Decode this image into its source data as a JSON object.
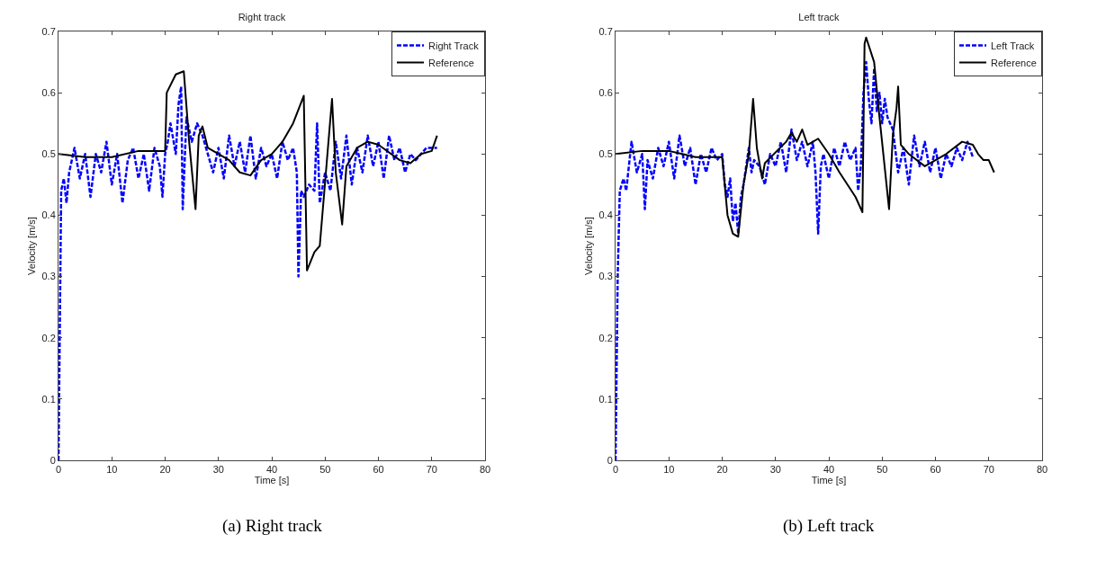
{
  "chart_data": [
    {
      "type": "line",
      "title": "Right track",
      "xlabel": "Time [s]",
      "ylabel": "Velocity [m/s]",
      "xlim": [
        0,
        80
      ],
      "ylim": [
        0,
        0.7
      ],
      "xticks": [
        0,
        10,
        20,
        30,
        40,
        50,
        60,
        70,
        80
      ],
      "yticks": [
        0,
        0.1,
        0.2,
        0.3,
        0.4,
        0.5,
        0.6,
        0.7
      ],
      "grid": false,
      "legend": "top right",
      "annotations": [
        "(a) Right track"
      ],
      "series": [
        {
          "name": "Right Track",
          "color": "#0000ff",
          "line_style": "dashed",
          "x": [
            0,
            0.5,
            1,
            1.5,
            2,
            3,
            4,
            5,
            6,
            7,
            8,
            9,
            10,
            11,
            12,
            13,
            14,
            15,
            16,
            17,
            18,
            19,
            19.5,
            20,
            20.5,
            21,
            22,
            22.5,
            23,
            23.3,
            24,
            25,
            26,
            27,
            29,
            30,
            31,
            32,
            33,
            34,
            35,
            36,
            37,
            38,
            39,
            40,
            41,
            42,
            43,
            44,
            44.7,
            45,
            45.5,
            46,
            47,
            48,
            48.5,
            49,
            50,
            51,
            52,
            53,
            54,
            55,
            56,
            57,
            58,
            59,
            60,
            61,
            62,
            63,
            64,
            65,
            66,
            67,
            68,
            69,
            70,
            71
          ],
          "values": [
            0,
            0.44,
            0.46,
            0.42,
            0.47,
            0.51,
            0.46,
            0.5,
            0.43,
            0.5,
            0.47,
            0.52,
            0.45,
            0.5,
            0.42,
            0.49,
            0.51,
            0.46,
            0.5,
            0.44,
            0.51,
            0.48,
            0.43,
            0.5,
            0.52,
            0.55,
            0.5,
            0.58,
            0.61,
            0.41,
            0.56,
            0.52,
            0.55,
            0.53,
            0.47,
            0.51,
            0.46,
            0.53,
            0.48,
            0.52,
            0.47,
            0.53,
            0.46,
            0.51,
            0.48,
            0.5,
            0.46,
            0.52,
            0.49,
            0.51,
            0.47,
            0.3,
            0.44,
            0.43,
            0.45,
            0.44,
            0.55,
            0.42,
            0.47,
            0.44,
            0.52,
            0.46,
            0.53,
            0.45,
            0.51,
            0.47,
            0.53,
            0.48,
            0.52,
            0.46,
            0.53,
            0.49,
            0.51,
            0.47,
            0.5,
            0.49,
            0.5,
            0.51,
            0.51,
            0.51
          ]
        },
        {
          "name": "Reference",
          "color": "#000000",
          "line_style": "solid",
          "x": [
            0,
            5,
            10,
            15,
            20,
            20.3,
            22,
            23.5,
            24.5,
            25.7,
            26.3,
            27,
            28,
            32,
            34,
            36,
            38,
            40,
            42,
            44,
            46,
            46.6,
            48,
            49,
            51.3,
            52,
            53.2,
            54,
            56,
            58,
            60,
            64,
            66,
            68,
            70,
            71
          ],
          "values": [
            0.5,
            0.495,
            0.495,
            0.505,
            0.505,
            0.6,
            0.63,
            0.635,
            0.52,
            0.41,
            0.53,
            0.545,
            0.51,
            0.49,
            0.47,
            0.465,
            0.49,
            0.5,
            0.52,
            0.55,
            0.595,
            0.31,
            0.34,
            0.35,
            0.59,
            0.47,
            0.385,
            0.48,
            0.51,
            0.52,
            0.515,
            0.49,
            0.485,
            0.5,
            0.505,
            0.53
          ]
        }
      ]
    },
    {
      "type": "line",
      "title": "Left track",
      "xlabel": "Time [s]",
      "ylabel": "Velocity [m/s]",
      "xlim": [
        0,
        80
      ],
      "ylim": [
        0,
        0.7
      ],
      "xticks": [
        0,
        10,
        20,
        30,
        40,
        50,
        60,
        70,
        80
      ],
      "yticks": [
        0,
        0.1,
        0.2,
        0.3,
        0.4,
        0.5,
        0.6,
        0.7
      ],
      "grid": false,
      "legend": "top right",
      "annotations": [
        "(b) Left track"
      ],
      "series": [
        {
          "name": "Left Track",
          "color": "#0000ff",
          "line_style": "dashed",
          "x": [
            0,
            0.4,
            0.8,
            1.5,
            2,
            3,
            4,
            5,
            5.5,
            6,
            7,
            8,
            9,
            10,
            11,
            12,
            13,
            14,
            15,
            16,
            17,
            18,
            19,
            20,
            20.5,
            21,
            21.5,
            22,
            22.5,
            23,
            23.5,
            24,
            25,
            25.5,
            26,
            27,
            28,
            29,
            30,
            31,
            32,
            33,
            34,
            35,
            36,
            37,
            37.5,
            38,
            38.5,
            39,
            40,
            41,
            42,
            43,
            44,
            45,
            45.5,
            46,
            46.5,
            47,
            47.5,
            48,
            48.5,
            49,
            49.5,
            50,
            50.5,
            51,
            52,
            53,
            54,
            55,
            56,
            57,
            58,
            59,
            60,
            61,
            62,
            63,
            64,
            65,
            66,
            67
          ],
          "values": [
            0,
            0.3,
            0.44,
            0.46,
            0.44,
            0.52,
            0.47,
            0.5,
            0.41,
            0.49,
            0.46,
            0.51,
            0.48,
            0.52,
            0.46,
            0.53,
            0.48,
            0.51,
            0.45,
            0.5,
            0.47,
            0.51,
            0.49,
            0.5,
            0.45,
            0.43,
            0.46,
            0.39,
            0.42,
            0.37,
            0.43,
            0.45,
            0.51,
            0.47,
            0.49,
            0.48,
            0.45,
            0.5,
            0.48,
            0.52,
            0.47,
            0.54,
            0.49,
            0.52,
            0.48,
            0.52,
            0.47,
            0.37,
            0.48,
            0.5,
            0.46,
            0.51,
            0.48,
            0.52,
            0.49,
            0.51,
            0.44,
            0.48,
            0.6,
            0.65,
            0.59,
            0.55,
            0.64,
            0.57,
            0.6,
            0.55,
            0.59,
            0.56,
            0.54,
            0.47,
            0.51,
            0.45,
            0.53,
            0.48,
            0.52,
            0.47,
            0.51,
            0.46,
            0.5,
            0.48,
            0.51,
            0.49,
            0.52,
            0.495
          ]
        },
        {
          "name": "Reference",
          "color": "#000000",
          "line_style": "solid",
          "x": [
            0,
            5,
            10,
            15,
            20,
            21,
            22,
            23,
            24,
            25,
            25.8,
            26.5,
            27.5,
            28,
            32,
            33,
            34,
            35,
            36,
            38,
            40,
            42,
            45,
            46.3,
            46.7,
            47,
            48.5,
            49.5,
            51.3,
            52,
            52.7,
            53,
            53.5,
            55,
            58,
            62,
            65,
            67,
            68,
            69,
            70,
            71
          ],
          "values": [
            0.5,
            0.505,
            0.505,
            0.495,
            0.495,
            0.4,
            0.37,
            0.365,
            0.45,
            0.5,
            0.59,
            0.51,
            0.46,
            0.485,
            0.52,
            0.535,
            0.52,
            0.54,
            0.515,
            0.525,
            0.5,
            0.47,
            0.43,
            0.405,
            0.68,
            0.69,
            0.65,
            0.56,
            0.41,
            0.53,
            0.575,
            0.61,
            0.515,
            0.5,
            0.48,
            0.5,
            0.52,
            0.515,
            0.5,
            0.49,
            0.49,
            0.47
          ]
        }
      ]
    }
  ]
}
